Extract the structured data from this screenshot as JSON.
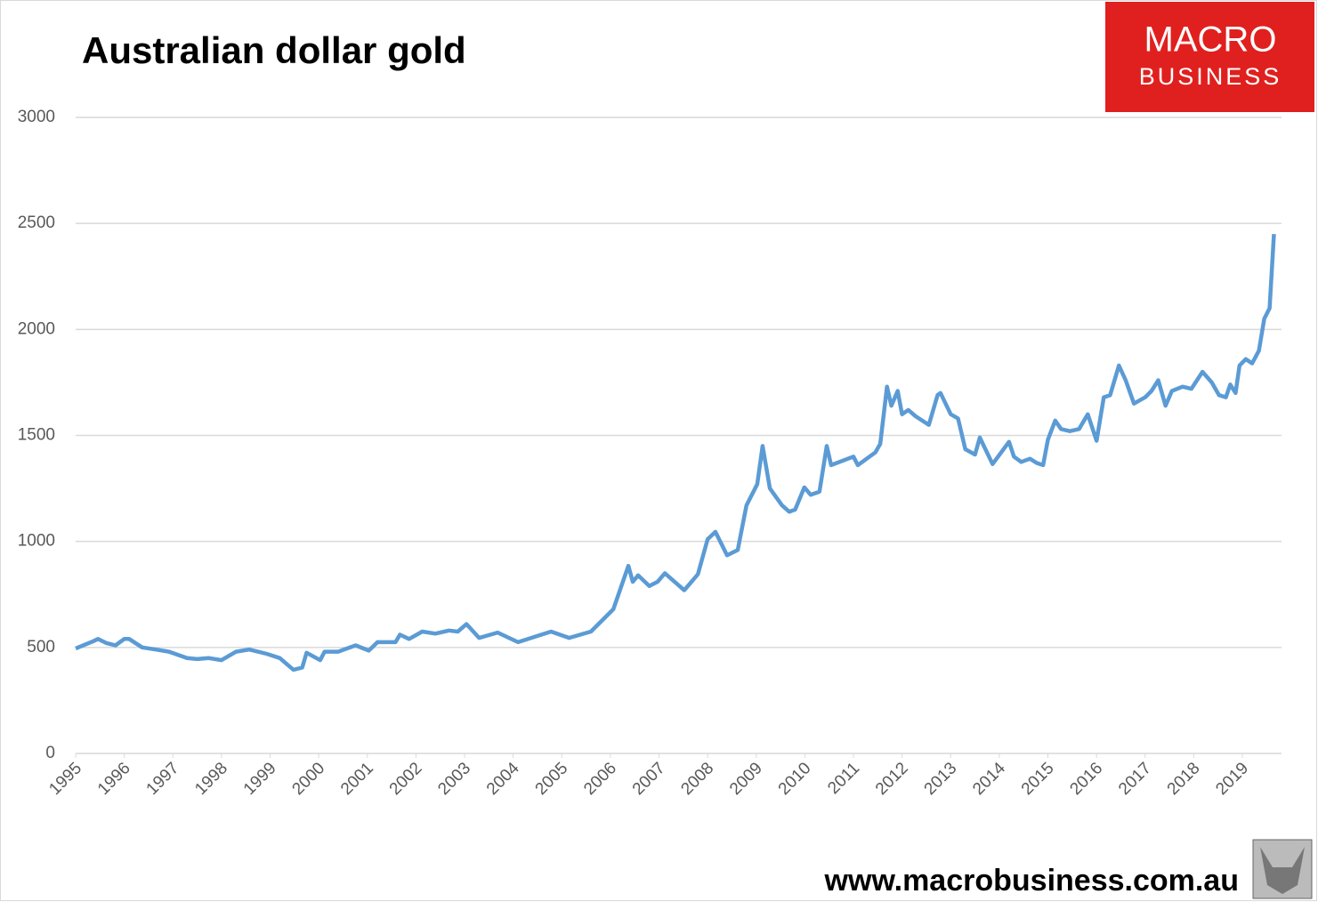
{
  "chart_data": {
    "type": "line",
    "title": "Australian dollar gold",
    "x": [
      1995.0,
      1995.37,
      1995.46,
      1995.64,
      1995.82,
      1996.0,
      1996.1,
      1996.37,
      1996.65,
      1996.92,
      1997.29,
      1997.5,
      1997.74,
      1998.0,
      1998.3,
      1998.57,
      1998.93,
      1999.2,
      1999.48,
      1999.66,
      1999.75,
      2000.03,
      2000.12,
      2000.4,
      2000.76,
      2001.03,
      2001.21,
      2001.58,
      2001.67,
      2001.86,
      2002.13,
      2002.4,
      2002.68,
      2002.86,
      2003.04,
      2003.3,
      2003.68,
      2004.1,
      2004.78,
      2005.15,
      2005.6,
      2006.06,
      2006.37,
      2006.46,
      2006.57,
      2006.8,
      2006.97,
      2007.12,
      2007.52,
      2007.8,
      2008.0,
      2008.16,
      2008.4,
      2008.62,
      2008.8,
      2009.02,
      2009.13,
      2009.28,
      2009.53,
      2009.68,
      2009.8,
      2009.99,
      2010.12,
      2010.3,
      2010.45,
      2010.54,
      2011.0,
      2011.09,
      2011.45,
      2011.55,
      2011.69,
      2011.78,
      2011.91,
      2012.0,
      2012.13,
      2012.28,
      2012.55,
      2012.73,
      2012.79,
      2013.0,
      2013.15,
      2013.3,
      2013.5,
      2013.6,
      2013.86,
      2014.2,
      2014.3,
      2014.45,
      2014.63,
      2014.77,
      2014.9,
      2015.0,
      2015.15,
      2015.27,
      2015.45,
      2015.64,
      2015.82,
      2016.0,
      2016.15,
      2016.28,
      2016.46,
      2016.6,
      2016.77,
      2017.0,
      2017.13,
      2017.27,
      2017.42,
      2017.55,
      2017.77,
      2017.95,
      2018.18,
      2018.37,
      2018.52,
      2018.66,
      2018.75,
      2018.86,
      2018.94,
      2019.07,
      2019.2,
      2019.34,
      2019.45,
      2019.56,
      2019.65
    ],
    "series": [
      {
        "name": "Australian dollar gold",
        "color": "#5b9bd5",
        "values": [
          495,
          530,
          540,
          520,
          510,
          540,
          540,
          500,
          490,
          480,
          450,
          445,
          450,
          440,
          480,
          490,
          470,
          450,
          395,
          405,
          475,
          440,
          480,
          480,
          510,
          485,
          525,
          525,
          560,
          540,
          575,
          565,
          580,
          575,
          610,
          545,
          570,
          525,
          575,
          545,
          575,
          680,
          885,
          810,
          840,
          790,
          810,
          850,
          770,
          845,
          1010,
          1045,
          935,
          960,
          1170,
          1270,
          1450,
          1250,
          1170,
          1140,
          1150,
          1255,
          1220,
          1235,
          1450,
          1360,
          1400,
          1360,
          1420,
          1460,
          1730,
          1640,
          1710,
          1600,
          1620,
          1590,
          1550,
          1690,
          1700,
          1600,
          1580,
          1435,
          1410,
          1490,
          1365,
          1470,
          1400,
          1375,
          1390,
          1370,
          1360,
          1480,
          1570,
          1530,
          1520,
          1530,
          1600,
          1475,
          1680,
          1690,
          1830,
          1760,
          1650,
          1680,
          1710,
          1760,
          1640,
          1710,
          1730,
          1720,
          1800,
          1750,
          1690,
          1680,
          1740,
          1700,
          1830,
          1860,
          1840,
          1900,
          2050,
          2100,
          2450
        ]
      }
    ],
    "xlim": [
      1995,
      2019.75
    ],
    "xticks": [
      1995,
      1996,
      1997,
      1998,
      1999,
      2000,
      2001,
      2002,
      2003,
      2004,
      2005,
      2006,
      2007,
      2008,
      2009,
      2010,
      2011,
      2012,
      2013,
      2014,
      2015,
      2016,
      2017,
      2018,
      2019
    ],
    "ylim": [
      0,
      3000
    ],
    "yticks": [
      0,
      500,
      1000,
      1500,
      2000,
      2500,
      3000
    ],
    "grid": true
  },
  "logo": {
    "line1": "MACRO",
    "line2": "BUSINESS"
  },
  "footer": "www.macrobusiness.com.au"
}
